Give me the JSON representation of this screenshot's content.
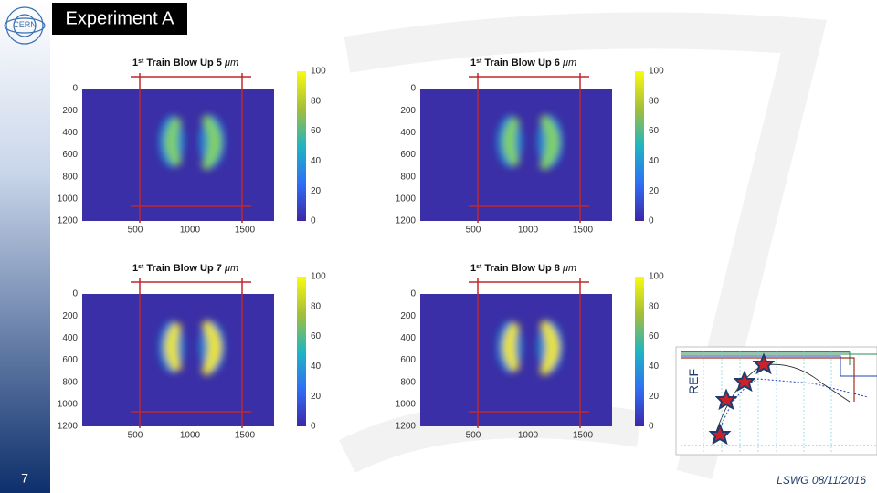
{
  "header": {
    "title": "Experiment A"
  },
  "panels": [
    {
      "title_number": "1",
      "title_sup": "st",
      "title_rest": "Train Blow Up 5 ",
      "title_unit": "μm"
    },
    {
      "title_number": "1",
      "title_sup": "st",
      "title_rest": "Train Blow Up 6 ",
      "title_unit": "μm"
    },
    {
      "title_number": "1",
      "title_sup": "st",
      "title_rest": "Train Blow Up 7 ",
      "title_unit": "μm"
    },
    {
      "title_number": "1",
      "title_sup": "st",
      "title_rest": "Train Blow Up 8 ",
      "title_unit": "μm"
    }
  ],
  "axes": {
    "yticks": [
      0,
      200,
      400,
      600,
      800,
      1000,
      1200
    ],
    "xticks": [
      500,
      1000,
      1500
    ],
    "colorbar_ticks": [
      0,
      20,
      40,
      60,
      80,
      100
    ]
  },
  "inset": {
    "label": "REF"
  },
  "footer": {
    "page": "7",
    "note": "LSWG 08/11/2016"
  }
}
